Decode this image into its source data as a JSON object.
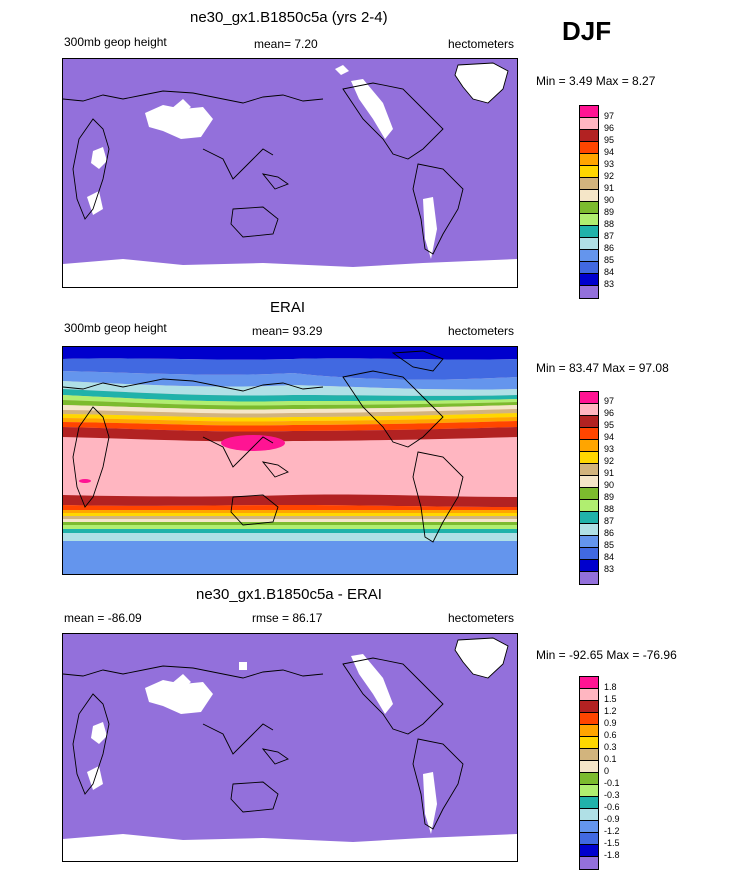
{
  "season": "DJF",
  "colors": {
    "model_fill": "#9370DB",
    "land_white": "#ffffff",
    "palette": [
      "#9370DB",
      "#0000CD",
      "#4169E1",
      "#6495ED",
      "#B0E0E6",
      "#20B2AA",
      "#B0EE70",
      "#7CBB2E",
      "#F5E6C8",
      "#D2B47D",
      "#FFD700",
      "#FFA500",
      "#FF4500",
      "#B22222",
      "#FFB6C1",
      "#FF1493"
    ]
  },
  "panels": [
    {
      "title": "ne30_gx1.B1850c5a (yrs 2-4)",
      "left_label": "300mb geop height",
      "center_label": "mean=   7.20",
      "right_label": "hectometers",
      "minmax": "Min =   3.49 Max =   8.27",
      "levels": [
        "97",
        "96",
        "95",
        "94",
        "93",
        "92",
        "91",
        "90",
        "89",
        "88",
        "87",
        "86",
        "85",
        "84",
        "83"
      ]
    },
    {
      "title": "ERAI",
      "left_label": "300mb geop height",
      "center_label": "mean=  93.29",
      "right_label": "hectometers",
      "minmax": "Min =  83.47 Max =  97.08",
      "levels": [
        "97",
        "96",
        "95",
        "94",
        "93",
        "92",
        "91",
        "90",
        "89",
        "88",
        "87",
        "86",
        "85",
        "84",
        "83"
      ]
    },
    {
      "title": "ne30_gx1.B1850c5a - ERAI",
      "left_label": "mean = -86.09",
      "center_label": "rmse =  86.17",
      "right_label": "hectometers",
      "minmax": "Min = -92.65 Max = -76.96",
      "levels": [
        "1.8",
        "1.5",
        "1.2",
        "0.9",
        "0.6",
        "0.3",
        "0.1",
        "0",
        "-0.1",
        "-0.3",
        "-0.6",
        "-0.9",
        "-1.2",
        "-1.5",
        "-1.8"
      ]
    }
  ]
}
